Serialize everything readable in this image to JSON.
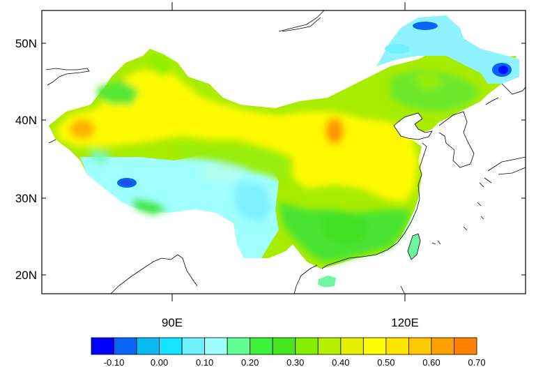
{
  "map": {
    "lat_labels": [
      "50N",
      "40N",
      "30N",
      "20N"
    ],
    "lon_labels": [
      "90E",
      "120E"
    ]
  },
  "colorbar": {
    "colors": [
      "#0000ff",
      "#0a64f5",
      "#0ab9f0",
      "#14e6ff",
      "#6ef0ff",
      "#a0ffff",
      "#64ff96",
      "#3cf03c",
      "#46e61e",
      "#82f000",
      "#b4f000",
      "#e6f000",
      "#ffff00",
      "#ffe600",
      "#ffc800",
      "#ffa000",
      "#ff8200"
    ],
    "labels": [
      "-0.10",
      "0.00",
      "0.10",
      "0.20",
      "0.30",
      "0.40",
      "0.50",
      "0.60",
      "0.70"
    ]
  }
}
